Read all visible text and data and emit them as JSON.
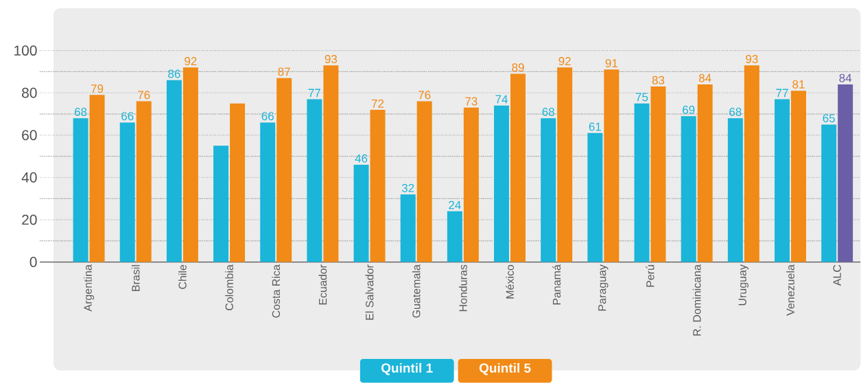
{
  "chart_data": {
    "type": "bar",
    "categories": [
      "Argentina",
      "Brasil",
      "Chile",
      "Colombia",
      "Costa Rica",
      "Ecuador",
      "El Salvador",
      "Guatemala",
      "Honduras",
      "México",
      "Panamá",
      "Paraguay",
      "Perú",
      "R. Dominicana",
      "Uruguay",
      "Venezuela",
      "ALC"
    ],
    "series": [
      {
        "name": "Quintil 1",
        "color": "#1ab5d8",
        "values": [
          68,
          66,
          86,
          55,
          66,
          77,
          46,
          32,
          24,
          74,
          68,
          61,
          75,
          69,
          68,
          77,
          65
        ],
        "value_labels": [
          "68",
          "66",
          "86",
          null,
          "66",
          "77",
          "46",
          "32",
          "24",
          "74",
          "68",
          "61",
          "75",
          "69",
          "68",
          "77",
          "65"
        ]
      },
      {
        "name": "Quintil 5",
        "color": "#f18a16",
        "colors": [
          "#f18a16",
          "#f18a16",
          "#f18a16",
          "#f18a16",
          "#f18a16",
          "#f18a16",
          "#f18a16",
          "#f18a16",
          "#f18a16",
          "#f18a16",
          "#f18a16",
          "#f18a16",
          "#f18a16",
          "#f18a16",
          "#f18a16",
          "#f18a16",
          "#6a5ea6"
        ],
        "values": [
          79,
          76,
          92,
          75,
          87,
          93,
          72,
          76,
          73,
          89,
          92,
          91,
          83,
          84,
          93,
          81,
          84
        ],
        "value_labels": [
          "79",
          "76",
          "92",
          null,
          "87",
          "93",
          "72",
          "76",
          "73",
          "89",
          "92",
          "91",
          "83",
          "84",
          "93",
          "81",
          "84"
        ]
      }
    ],
    "ylim": [
      0,
      120
    ],
    "yticks": [
      0,
      {
        "value": 10,
        "label": null
      },
      20,
      {
        "value": 30,
        "label": null
      },
      40,
      {
        "value": 50,
        "label": null
      },
      60,
      {
        "value": 70,
        "label": null
      },
      80,
      {
        "value": 90,
        "label": null
      },
      100
    ],
    "grid": "y",
    "legend": "bottom"
  }
}
